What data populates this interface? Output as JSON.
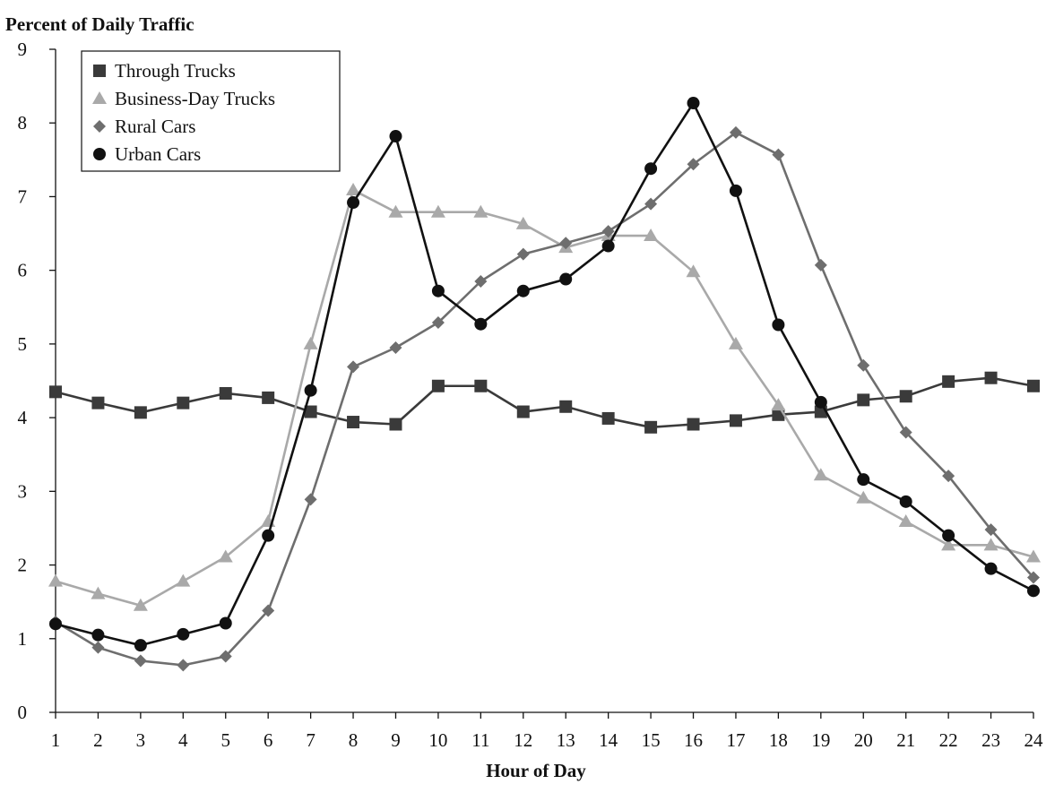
{
  "chart_data": {
    "type": "line",
    "ylabel": "Percent of Daily Traffic",
    "xlabel": "Hour of Day",
    "ylim": [
      0,
      9
    ],
    "yticks": [
      "0",
      "1",
      "2",
      "3",
      "4",
      "5",
      "6",
      "7",
      "8",
      "9"
    ],
    "x": [
      "1",
      "2",
      "3",
      "4",
      "5",
      "6",
      "7",
      "8",
      "9",
      "10",
      "11",
      "12",
      "13",
      "14",
      "15",
      "16",
      "17",
      "18",
      "19",
      "20",
      "21",
      "22",
      "23",
      "24"
    ],
    "legend_position": "top-left",
    "grid": false,
    "series": [
      {
        "name": "Through Trucks",
        "marker": "square",
        "color": "#3a3a3a",
        "values": [
          4.35,
          4.2,
          4.07,
          4.2,
          4.33,
          4.27,
          4.08,
          3.94,
          3.91,
          4.43,
          4.43,
          4.08,
          4.15,
          3.99,
          3.87,
          3.91,
          3.96,
          4.04,
          4.08,
          4.24,
          4.29,
          4.49,
          4.54,
          4.43
        ]
      },
      {
        "name": "Business-Day Trucks",
        "marker": "triangle",
        "color": "#a9a9a9",
        "values": [
          1.78,
          1.61,
          1.45,
          1.78,
          2.11,
          2.59,
          5.0,
          7.09,
          6.79,
          6.79,
          6.79,
          6.63,
          6.31,
          6.47,
          6.47,
          5.98,
          5.0,
          4.17,
          3.22,
          2.91,
          2.59,
          2.27,
          2.27,
          2.11
        ]
      },
      {
        "name": "Rural Cars",
        "marker": "diamond",
        "color": "#6e6e6e",
        "values": [
          1.23,
          0.88,
          0.7,
          0.64,
          0.76,
          1.38,
          2.89,
          4.69,
          4.95,
          5.29,
          5.85,
          6.22,
          6.37,
          6.53,
          6.9,
          7.44,
          7.87,
          7.57,
          6.07,
          4.71,
          3.8,
          3.21,
          2.48,
          1.83
        ]
      },
      {
        "name": "Urban Cars",
        "marker": "circle",
        "color": "#111111",
        "values": [
          1.2,
          1.05,
          0.91,
          1.06,
          1.21,
          2.4,
          4.37,
          6.92,
          7.82,
          5.72,
          5.27,
          5.72,
          5.88,
          6.33,
          7.38,
          8.27,
          7.08,
          5.26,
          4.21,
          3.16,
          2.86,
          2.4,
          1.95,
          1.65
        ]
      }
    ]
  }
}
